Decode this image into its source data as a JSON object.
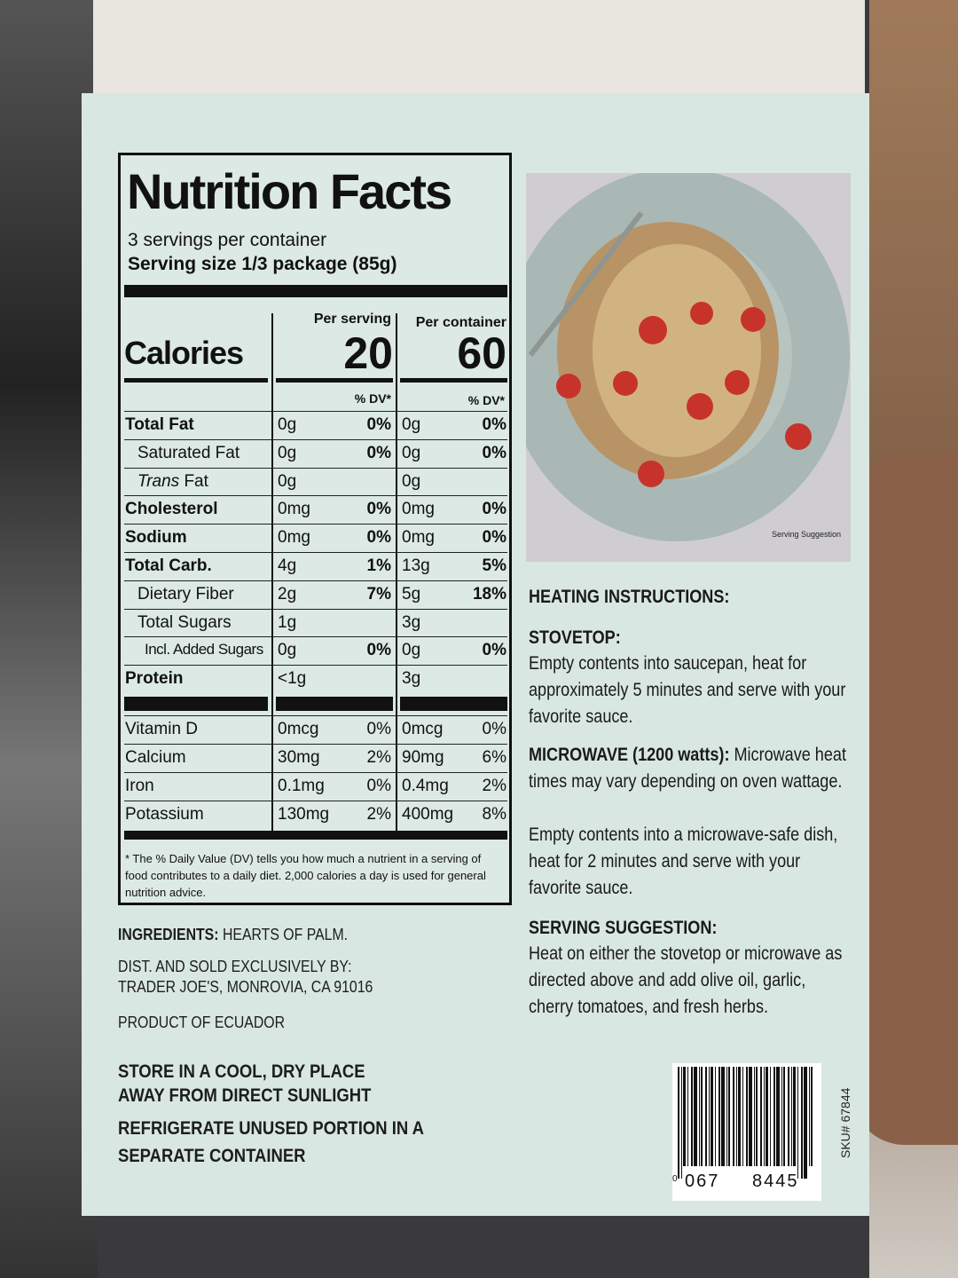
{
  "nutrition_facts": {
    "title": "Nutrition Facts",
    "servings": "3 servings per container",
    "serving_size": "Serving size 1/3 package (85g)",
    "col_headers": [
      "Per serving",
      "Per container"
    ],
    "calories_label": "Calories",
    "calories": [
      20,
      60
    ],
    "dv_header": "% DV*",
    "rows": [
      {
        "name": "Total Fat",
        "bold": true,
        "indent": 0,
        "serving": "0g",
        "serving_dv": "0%",
        "container": "0g",
        "container_dv": "0%"
      },
      {
        "name": "Saturated Fat",
        "bold": false,
        "indent": 1,
        "serving": "0g",
        "serving_dv": "0%",
        "container": "0g",
        "container_dv": "0%"
      },
      {
        "name_italic": "Trans",
        "name": "Fat",
        "bold": false,
        "indent": 1,
        "serving": "0g",
        "container": "0g"
      },
      {
        "name": "Cholesterol",
        "bold": true,
        "indent": 0,
        "serving": "0mg",
        "serving_dv": "0%",
        "container": "0mg",
        "container_dv": "0%"
      },
      {
        "name": "Sodium",
        "bold": true,
        "indent": 0,
        "serving": "0mg",
        "serving_dv": "0%",
        "container": "0mg",
        "container_dv": "0%"
      },
      {
        "name": "Total Carb.",
        "bold": true,
        "indent": 0,
        "serving": "4g",
        "serving_dv": "1%",
        "container": "13g",
        "container_dv": "5%"
      },
      {
        "name": "Dietary Fiber",
        "bold": false,
        "indent": 1,
        "serving": "2g",
        "serving_dv": "7%",
        "container": "5g",
        "container_dv": "18%"
      },
      {
        "name": "Total Sugars",
        "bold": false,
        "indent": 1,
        "serving": "1g",
        "container": "3g"
      },
      {
        "name": "Incl. Added Sugars",
        "bold": false,
        "indent": 2,
        "serving": "0g",
        "serving_dv": "0%",
        "container": "0g",
        "container_dv": "0%"
      },
      {
        "name": "Protein",
        "bold": true,
        "indent": 0,
        "serving": "<1g",
        "container": "3g"
      }
    ],
    "vitamins": [
      {
        "name": "Vitamin D",
        "serving": "0mcg",
        "serving_dv": "0%",
        "container": "0mcg",
        "container_dv": "0%"
      },
      {
        "name": "Calcium",
        "serving": "30mg",
        "serving_dv": "2%",
        "container": "90mg",
        "container_dv": "6%"
      },
      {
        "name": "Iron",
        "serving": "0.1mg",
        "serving_dv": "0%",
        "container": "0.4mg",
        "container_dv": "2%"
      },
      {
        "name": "Potassium",
        "serving": "130mg",
        "serving_dv": "2%",
        "container": "400mg",
        "container_dv": "8%"
      }
    ],
    "footnote": "* The % Daily Value (DV) tells you how much a nutrient in a serving of food contributes to a daily diet. 2,000 calories a day is used for general nutrition advice."
  },
  "left_info": {
    "ingredients_label": "INGREDIENTS:",
    "ingredients": "HEARTS OF PALM.",
    "dist": [
      "DIST. AND SOLD EXCLUSIVELY BY:",
      "TRADER JOE'S, MONROVIA, CA 91016"
    ],
    "origin": "PRODUCT OF ECUADOR",
    "storage": [
      "STORE IN A COOL, DRY PLACE",
      "AWAY FROM DIRECT SUNLIGHT"
    ],
    "refrigerate": [
      "REFRIGERATE UNUSED PORTION IN A",
      "SEPARATE CONTAINER"
    ]
  },
  "photo_caption": "Serving Suggestion",
  "instructions": {
    "heading": "HEATING INSTRUCTIONS:",
    "stovetop_heading": "STOVETOP:",
    "stovetop": "Empty contents into saucepan, heat for approximately 5 minutes and serve with your favorite sauce.",
    "microwave_heading": "MICROWAVE (1200 watts):",
    "microwave": "Microwave heat times may vary depending on oven wattage.",
    "microwave_2": "Empty contents into a microwave-safe dish, heat for 2 minutes and serve with your favorite sauce.",
    "suggestion_heading": "SERVING SUGGESTION:",
    "suggestion": "Heat on either the stovetop or microwave as directed above and add olive oil, garlic, cherry tomatoes, and fresh herbs."
  },
  "barcode": {
    "lead": "0",
    "left": "067",
    "right": "8445",
    "sku": "SKU# 67844"
  }
}
